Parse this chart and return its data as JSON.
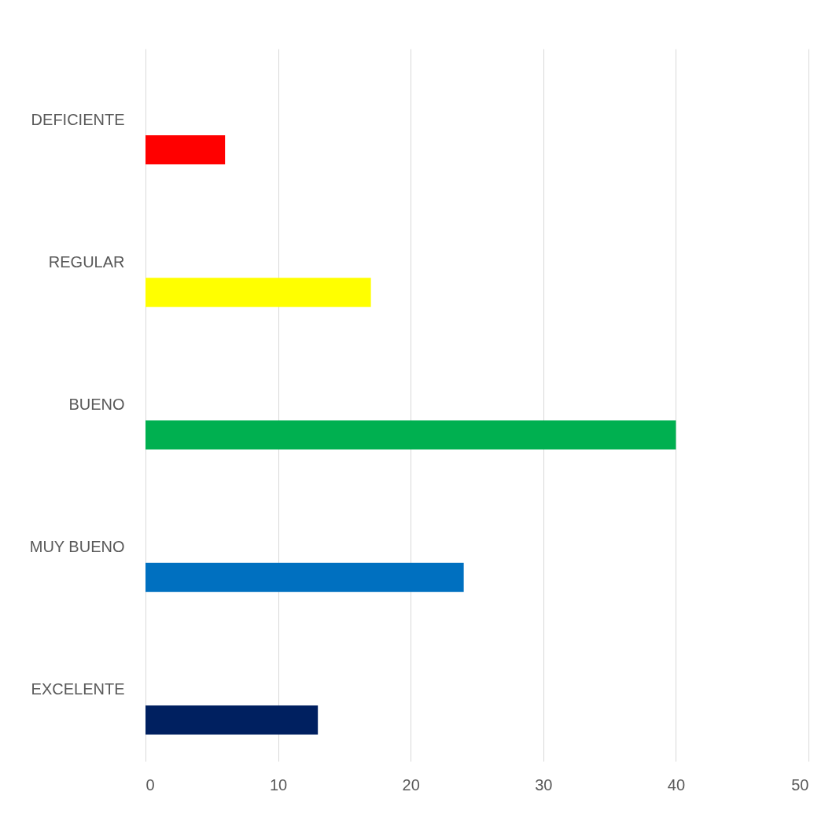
{
  "chart_data": {
    "type": "bar",
    "orientation": "horizontal",
    "categories": [
      "DEFICIENTE",
      "REGULAR",
      "BUENO",
      "MUY BUENO",
      "EXCELENTE"
    ],
    "values": [
      6,
      17,
      40,
      24,
      13
    ],
    "colors": [
      "#ff0000",
      "#ffff00",
      "#00b050",
      "#0070c0",
      "#002060"
    ],
    "xlim": [
      0,
      50
    ],
    "xticks": [
      0,
      10,
      20,
      30,
      40,
      50
    ],
    "grid": "x"
  }
}
